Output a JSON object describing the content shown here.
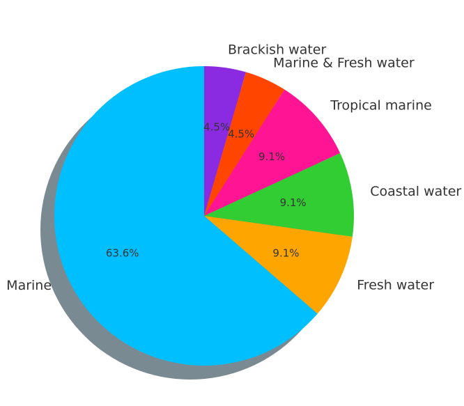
{
  "chart_data": {
    "type": "pie",
    "title": "",
    "start_angle_deg": 90,
    "direction": "clockwise",
    "shadow": true,
    "slices": [
      {
        "label": "Brackish water",
        "value": 4.5,
        "pct_label": "4.5%",
        "color": "#8A2BE2"
      },
      {
        "label": "Marine & Fresh water",
        "value": 4.5,
        "pct_label": "4.5%",
        "color": "#FF4500"
      },
      {
        "label": "Tropical marine",
        "value": 9.1,
        "pct_label": "9.1%",
        "color": "#FF1493"
      },
      {
        "label": "Coastal water",
        "value": 9.1,
        "pct_label": "9.1%",
        "color": "#32CD32"
      },
      {
        "label": "Fresh water",
        "value": 9.1,
        "pct_label": "9.1%",
        "color": "#FFA500"
      },
      {
        "label": "Marine",
        "value": 63.6,
        "pct_label": "63.6%",
        "color": "#00BFFF"
      }
    ]
  }
}
